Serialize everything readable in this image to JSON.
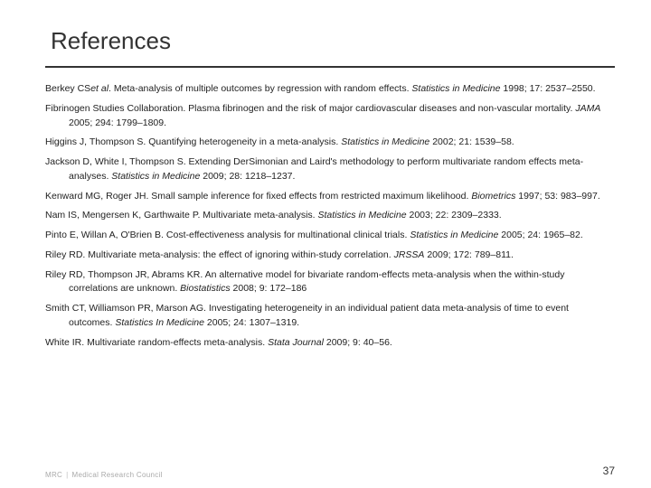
{
  "title": "References",
  "references": [
    {
      "authors": "Berkey CS",
      "etal": "et al",
      "post": ". Meta-analysis of multiple outcomes by regression with random effects. ",
      "journal": "Statistics in Medicine",
      "cite": " 1998; 17: 2537–2550."
    },
    {
      "authors": "Fibrinogen Studies Collaboration. Plasma fibrinogen and the risk of major cardiovascular diseases and non-vascular mortality. ",
      "journal": "JAMA",
      "cite": " 2005; 294: 1799–1809."
    },
    {
      "authors": "Higgins J, Thompson S. Quantifying heterogeneity in a meta-analysis. ",
      "journal": "Statistics in Medicine",
      "cite": " 2002; 21: 1539–58."
    },
    {
      "authors": "Jackson D, White I, Thompson S. Extending DerSimonian and Laird's methodology to perform multivariate random effects meta-analyses. ",
      "journal": "Statistics in Medicine",
      "cite": " 2009; 28: 1218–1237."
    },
    {
      "authors": "Kenward MG, Roger JH. Small sample inference for fixed effects from restricted maximum likelihood. ",
      "journal": "Biometrics",
      "cite": " 1997; 53: 983–997."
    },
    {
      "authors": "Nam IS, Mengersen K, Garthwaite P. Multivariate meta-analysis. ",
      "journal": "Statistics in Medicine",
      "cite": " 2003; 22: 2309–2333."
    },
    {
      "authors": "Pinto E, Willan A, O'Brien B. Cost-effectiveness analysis for multinational clinical trials. ",
      "journal": "Statistics in Medicine",
      "cite": " 2005; 24: 1965–82."
    },
    {
      "authors": "Riley RD. Multivariate meta-analysis: the effect of ignoring within-study correlation. ",
      "journal": "JRSSA",
      "cite": " 2009; 172: 789–811."
    },
    {
      "authors": "Riley RD, Thompson JR, Abrams KR. An alternative model for bivariate random-effects meta-analysis when the within-study correlations are unknown. ",
      "journal": "Biostatistics",
      "cite": " 2008; 9: 172–186"
    },
    {
      "authors": "Smith CT, Williamson PR, Marson AG. Investigating heterogeneity in an individual patient data meta-analysis of time to event outcomes. ",
      "journal": "Statistics In Medicine",
      "cite": " 2005; 24: 1307–1319."
    },
    {
      "authors": "White IR. Multivariate random-effects meta-analysis. ",
      "journal": "Stata Journal",
      "cite": " 2009; 9: 40–56."
    }
  ],
  "page_number": "37",
  "logo_left": "MRC",
  "logo_right": "Medical Research Council",
  "colors": {
    "text": "#222222",
    "rule": "#333333",
    "logo": "#aaaaaa"
  }
}
